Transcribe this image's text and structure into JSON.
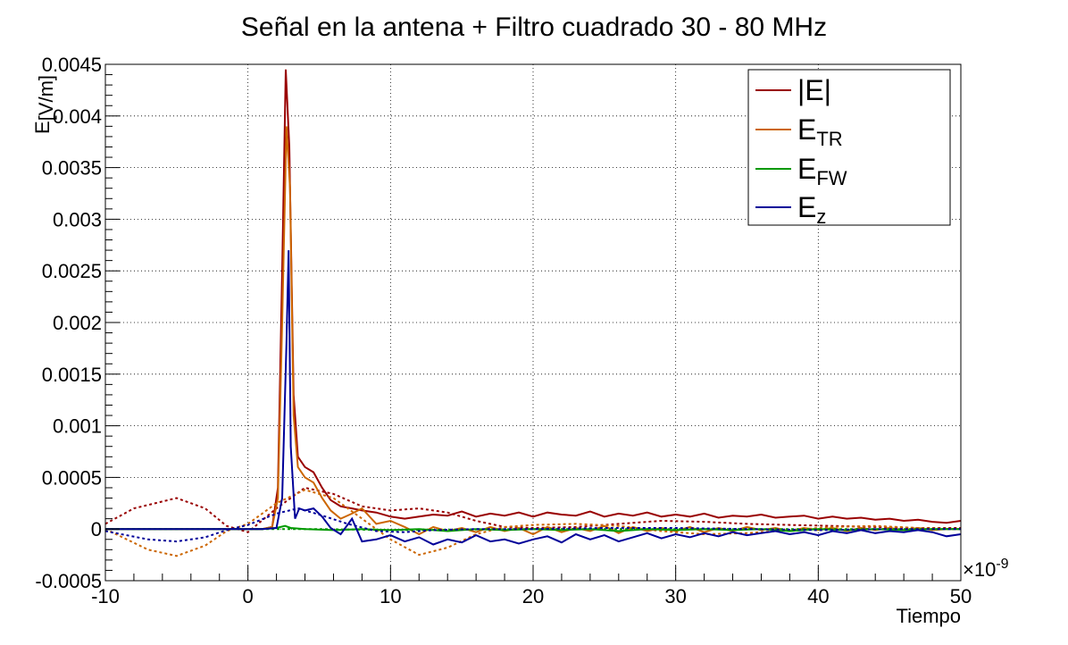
{
  "chart_data": {
    "type": "line",
    "title": "Señal en la antena + Filtro cuadrado 30 - 80 MHz",
    "xlabel": "Tiempo",
    "ylabel": "E_{}[V/m]",
    "ylabel_main": "E",
    "ylabel_unit": "[V/m]",
    "x_exponent_label": "×10",
    "x_exponent": "-9",
    "xlim": [
      -10,
      50
    ],
    "ylim": [
      -0.0005,
      0.0045
    ],
    "x_ticks": [
      "-10",
      "0",
      "10",
      "20",
      "30",
      "40",
      "50"
    ],
    "y_ticks": [
      "-0.0005",
      "0",
      "0.0005",
      "0.001",
      "0.0015",
      "0.002",
      "0.0025",
      "0.003",
      "0.0035",
      "0.004",
      "0.0045"
    ],
    "grid": true,
    "legend_position": "top-right",
    "series": [
      {
        "name": "|E|",
        "label_main": "|E|",
        "label_sub": "",
        "color": "#990000",
        "solid": [
          [
            -10,
            0
          ],
          [
            1,
            0
          ],
          [
            1.7,
            2e-05
          ],
          [
            2.1,
            0.0004
          ],
          [
            2.4,
            0.0025
          ],
          [
            2.65,
            0.00445
          ],
          [
            2.9,
            0.0037
          ],
          [
            3.2,
            0.0013
          ],
          [
            3.5,
            0.0007
          ],
          [
            4,
            0.0006
          ],
          [
            4.6,
            0.00055
          ],
          [
            5.2,
            0.0004
          ],
          [
            5.8,
            0.00028
          ],
          [
            6.5,
            0.00022
          ],
          [
            7.3,
            0.0002
          ],
          [
            8,
            0.00018
          ],
          [
            9,
            0.00016
          ],
          [
            10,
            0.00012
          ],
          [
            11,
            0.0001
          ],
          [
            12,
            0.00012
          ],
          [
            13,
            0.00014
          ],
          [
            14,
            0.00013
          ],
          [
            15,
            0.00017
          ],
          [
            16,
            0.00012
          ],
          [
            17,
            0.00015
          ],
          [
            18,
            0.00013
          ],
          [
            19,
            0.00016
          ],
          [
            20,
            0.00012
          ],
          [
            21,
            0.00016
          ],
          [
            22,
            0.00014
          ],
          [
            23,
            0.00013
          ],
          [
            24,
            0.00017
          ],
          [
            25,
            0.00012
          ],
          [
            26,
            0.00015
          ],
          [
            27,
            0.00013
          ],
          [
            28,
            0.00016
          ],
          [
            29,
            0.00012
          ],
          [
            30,
            0.00014
          ],
          [
            31,
            0.00012
          ],
          [
            32,
            0.00015
          ],
          [
            33,
            0.00011
          ],
          [
            34,
            0.00013
          ],
          [
            35,
            0.00012
          ],
          [
            36,
            0.00014
          ],
          [
            37,
            0.00011
          ],
          [
            38,
            0.00012
          ],
          [
            39,
            0.00013
          ],
          [
            40,
            0.0001
          ],
          [
            41,
            0.00012
          ],
          [
            42,
            0.0001
          ],
          [
            43,
            0.00011
          ],
          [
            44,
            9e-05
          ],
          [
            45,
            0.0001
          ],
          [
            46,
            8e-05
          ],
          [
            47,
            9e-05
          ],
          [
            48,
            7e-05
          ],
          [
            49,
            6e-05
          ],
          [
            50,
            8e-05
          ]
        ],
        "dashed": [
          [
            -10,
            5e-05
          ],
          [
            -8,
            0.0002
          ],
          [
            -5,
            0.0003
          ],
          [
            -3,
            0.0002
          ],
          [
            -1.5,
            3e-05
          ],
          [
            0,
            -3e-05
          ],
          [
            2,
            0.0002
          ],
          [
            4,
            0.0004
          ],
          [
            6,
            0.00034
          ],
          [
            8,
            0.00022
          ],
          [
            10,
            0.00018
          ],
          [
            12,
            0.0002
          ],
          [
            14,
            0.00016
          ],
          [
            16,
            8e-05
          ],
          [
            18,
            2e-05
          ],
          [
            20,
            1e-05
          ],
          [
            23,
            2e-05
          ],
          [
            26,
            5e-05
          ],
          [
            29,
            8e-05
          ],
          [
            32,
            7e-05
          ],
          [
            35,
            5e-05
          ],
          [
            38,
            4e-05
          ],
          [
            41,
            3e-05
          ],
          [
            44,
            2e-05
          ],
          [
            47,
            1e-05
          ],
          [
            50,
            1e-05
          ]
        ]
      },
      {
        "name": "E_TR",
        "label_main": "E",
        "label_sub": "TR",
        "color": "#cc6600",
        "solid": [
          [
            -10,
            0
          ],
          [
            1,
            0
          ],
          [
            1.7,
            2e-05
          ],
          [
            2.1,
            0.0003
          ],
          [
            2.4,
            0.002
          ],
          [
            2.7,
            0.0039
          ],
          [
            2.95,
            0.0033
          ],
          [
            3.2,
            0.0011
          ],
          [
            3.5,
            0.0006
          ],
          [
            4,
            0.0005
          ],
          [
            4.6,
            0.00045
          ],
          [
            5.2,
            0.0003
          ],
          [
            5.8,
            0.00018
          ],
          [
            6.5,
            0.0001
          ],
          [
            7.3,
            0.00015
          ],
          [
            8,
            0.0002
          ],
          [
            9,
            5e-05
          ],
          [
            10,
            8e-05
          ],
          [
            11,
            2e-05
          ],
          [
            12,
            -5e-05
          ],
          [
            13,
            2e-05
          ],
          [
            14,
            -2e-05
          ],
          [
            15,
            1e-05
          ],
          [
            16,
            -3e-05
          ],
          [
            17,
            2e-05
          ],
          [
            18,
            -2e-05
          ],
          [
            19,
            1e-05
          ],
          [
            20,
            -5e-05
          ],
          [
            21,
            2e-05
          ],
          [
            22,
            -3e-05
          ],
          [
            23,
            1e-05
          ],
          [
            24,
            -2e-05
          ],
          [
            25,
            3e-05
          ],
          [
            26,
            -4e-05
          ],
          [
            27,
            2e-05
          ],
          [
            28,
            -2e-05
          ],
          [
            29,
            1e-05
          ],
          [
            30,
            -2e-05
          ],
          [
            31,
            2e-05
          ],
          [
            32,
            -3e-05
          ],
          [
            33,
            1e-05
          ],
          [
            34,
            -2e-05
          ],
          [
            35,
            2e-05
          ],
          [
            36,
            -1e-05
          ],
          [
            37,
            1e-05
          ],
          [
            38,
            -2e-05
          ],
          [
            39,
            1e-05
          ],
          [
            40,
            -1e-05
          ],
          [
            41,
            1e-05
          ],
          [
            42,
            -2e-05
          ],
          [
            43,
            1e-05
          ],
          [
            44,
            -1e-05
          ],
          [
            45,
            1e-05
          ],
          [
            46,
            -1e-05
          ],
          [
            47,
            1e-05
          ],
          [
            48,
            -1e-05
          ],
          [
            49,
            0
          ],
          [
            50,
            0
          ]
        ],
        "dashed": [
          [
            -10,
            0
          ],
          [
            -7,
            -0.0002
          ],
          [
            -5,
            -0.00026
          ],
          [
            -3,
            -0.00016
          ],
          [
            -1.5,
            -2e-05
          ],
          [
            0,
            5e-05
          ],
          [
            2,
            0.00025
          ],
          [
            4,
            0.00038
          ],
          [
            6,
            0.0003
          ],
          [
            8,
            0.0001
          ],
          [
            10,
            -0.0001
          ],
          [
            12,
            -0.00025
          ],
          [
            14,
            -0.00018
          ],
          [
            16,
            -5e-05
          ],
          [
            18,
            2e-05
          ],
          [
            20,
            4e-05
          ],
          [
            23,
            5e-05
          ],
          [
            26,
            3e-05
          ],
          [
            29,
            -2e-05
          ],
          [
            32,
            -5e-05
          ],
          [
            35,
            -4e-05
          ],
          [
            38,
            -1e-05
          ],
          [
            41,
            2e-05
          ],
          [
            44,
            3e-05
          ],
          [
            47,
            1e-05
          ],
          [
            50,
            0
          ]
        ]
      },
      {
        "name": "E_FW",
        "label_main": "E",
        "label_sub": "FW",
        "color": "#009900",
        "solid": [
          [
            -10,
            0
          ],
          [
            1,
            0
          ],
          [
            2,
            1e-05
          ],
          [
            2.6,
            3e-05
          ],
          [
            3,
            1e-05
          ],
          [
            4,
            0
          ],
          [
            6,
            -1e-05
          ],
          [
            8,
            0
          ],
          [
            10,
            -1e-05
          ],
          [
            12,
            0
          ],
          [
            14,
            -2e-05
          ],
          [
            16,
            0
          ],
          [
            18,
            -1e-05
          ],
          [
            20,
            0
          ],
          [
            22,
            -1e-05
          ],
          [
            24,
            0
          ],
          [
            26,
            -2e-05
          ],
          [
            28,
            0
          ],
          [
            30,
            -1e-05
          ],
          [
            32,
            0
          ],
          [
            34,
            -1e-05
          ],
          [
            36,
            0
          ],
          [
            38,
            -2e-05
          ],
          [
            40,
            0
          ],
          [
            42,
            -1e-05
          ],
          [
            44,
            0
          ],
          [
            46,
            -1e-05
          ],
          [
            48,
            0
          ],
          [
            50,
            0
          ]
        ],
        "dashed": [
          [
            -10,
            0
          ],
          [
            0,
            0
          ],
          [
            5,
            0
          ],
          [
            10,
            -1e-05
          ],
          [
            20,
            0
          ],
          [
            30,
            0
          ],
          [
            40,
            0
          ],
          [
            50,
            0
          ]
        ]
      },
      {
        "name": "E_z",
        "label_main": "E",
        "label_sub": "z",
        "color": "#000099",
        "solid": [
          [
            -10,
            0
          ],
          [
            1,
            0
          ],
          [
            2,
            1e-05
          ],
          [
            2.4,
            0.0003
          ],
          [
            2.7,
            0.0018
          ],
          [
            2.85,
            0.0027
          ],
          [
            3.0,
            0.0008
          ],
          [
            3.3,
            0.0001
          ],
          [
            3.6,
            0.0002
          ],
          [
            4,
            0.00018
          ],
          [
            4.6,
            0.0002
          ],
          [
            5.2,
            0.00012
          ],
          [
            5.8,
            1e-05
          ],
          [
            6.5,
            -5e-05
          ],
          [
            7.3,
            0.0001
          ],
          [
            8,
            -0.00012
          ],
          [
            9,
            -0.0001
          ],
          [
            10,
            -6e-05
          ],
          [
            11,
            -0.00012
          ],
          [
            12,
            -8e-05
          ],
          [
            13,
            -0.00015
          ],
          [
            14,
            -0.0001
          ],
          [
            15,
            -0.00013
          ],
          [
            16,
            -6e-05
          ],
          [
            17,
            -0.00012
          ],
          [
            18,
            -0.0001
          ],
          [
            19,
            -0.00014
          ],
          [
            20,
            -0.0001
          ],
          [
            21,
            -7e-05
          ],
          [
            22,
            -0.00013
          ],
          [
            23,
            -5e-05
          ],
          [
            24,
            -0.0001
          ],
          [
            25,
            -6e-05
          ],
          [
            26,
            -0.00012
          ],
          [
            27,
            -8e-05
          ],
          [
            28,
            -4e-05
          ],
          [
            29,
            -9e-05
          ],
          [
            30,
            -5e-05
          ],
          [
            31,
            -8e-05
          ],
          [
            32,
            -4e-05
          ],
          [
            33,
            -7e-05
          ],
          [
            34,
            -3e-05
          ],
          [
            35,
            -6e-05
          ],
          [
            36,
            -4e-05
          ],
          [
            37,
            -2e-05
          ],
          [
            38,
            -5e-05
          ],
          [
            39,
            -3e-05
          ],
          [
            40,
            -6e-05
          ],
          [
            41,
            -2e-05
          ],
          [
            42,
            -4e-05
          ],
          [
            43,
            -1e-05
          ],
          [
            44,
            -4e-05
          ],
          [
            45,
            -2e-05
          ],
          [
            46,
            -3e-05
          ],
          [
            47,
            -1e-05
          ],
          [
            48,
            -3e-05
          ],
          [
            49,
            -7e-05
          ],
          [
            50,
            -5e-05
          ]
        ],
        "dashed": [
          [
            -10,
            -2e-05
          ],
          [
            -7,
            -0.0001
          ],
          [
            -5,
            -0.00012
          ],
          [
            -3,
            -8e-05
          ],
          [
            -1.5,
            -1e-05
          ],
          [
            0,
            4e-05
          ],
          [
            2,
            0.00015
          ],
          [
            3.5,
            0.0002
          ],
          [
            5,
            0.00014
          ],
          [
            7,
            5e-05
          ],
          [
            9,
            -2e-05
          ],
          [
            11,
            -3e-05
          ],
          [
            13,
            -1e-05
          ],
          [
            16,
            0
          ],
          [
            20,
            0
          ],
          [
            25,
            1e-05
          ],
          [
            30,
            1e-05
          ],
          [
            35,
            0
          ],
          [
            40,
            -1e-05
          ],
          [
            45,
            0
          ],
          [
            50,
            0
          ]
        ]
      }
    ]
  }
}
